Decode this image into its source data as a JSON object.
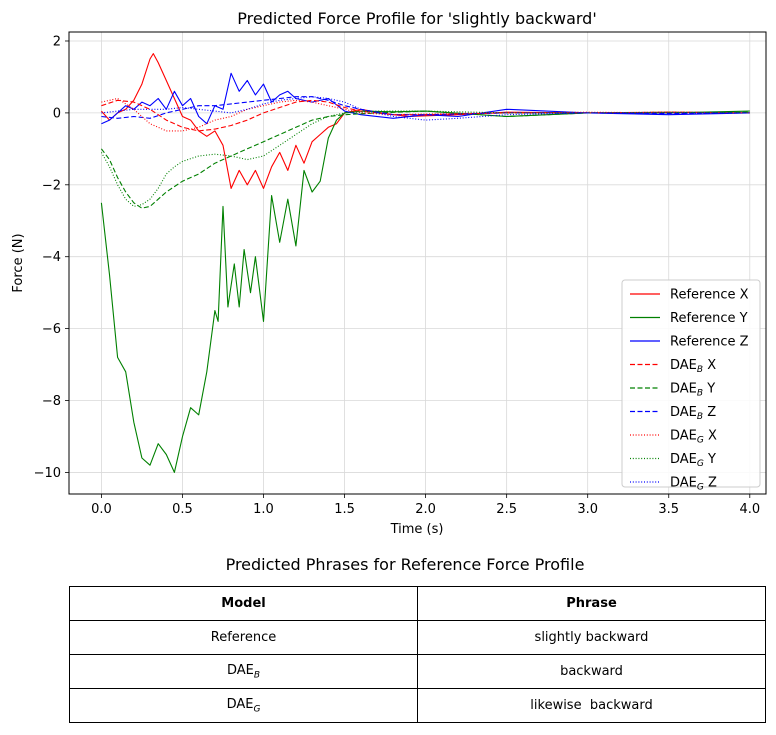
{
  "chart_data": {
    "type": "line",
    "title": "Predicted Force Profile for 'slightly backward'",
    "xlabel": "Time (s)",
    "ylabel": "Force (N)",
    "xlim": [
      -0.2,
      4.1
    ],
    "ylim": [
      -10.6,
      2.25
    ],
    "xticks": [
      0.0,
      0.5,
      1.0,
      1.5,
      2.0,
      2.5,
      3.0,
      3.5,
      4.0
    ],
    "xtick_labels": [
      "0.0",
      "0.5",
      "1.0",
      "1.5",
      "2.0",
      "2.5",
      "3.0",
      "3.5",
      "4.0"
    ],
    "yticks": [
      2,
      0,
      -2,
      -4,
      -6,
      -8,
      -10
    ],
    "ytick_labels": [
      "2",
      "0",
      "−2",
      "−4",
      "−6",
      "−8",
      "−10"
    ],
    "grid": true,
    "legend_position": "lower-right",
    "colors": {
      "x": "#ff0000",
      "y": "#008000",
      "z": "#0000ff"
    },
    "series": [
      {
        "name": "Reference X",
        "base": "Reference",
        "sub": "",
        "axis": "X",
        "color": "#ff0000",
        "style": "solid",
        "x": [
          0.0,
          0.05,
          0.1,
          0.15,
          0.2,
          0.25,
          0.3,
          0.32,
          0.35,
          0.4,
          0.45,
          0.5,
          0.55,
          0.6,
          0.65,
          0.7,
          0.75,
          0.8,
          0.85,
          0.9,
          0.95,
          1.0,
          1.05,
          1.1,
          1.15,
          1.2,
          1.25,
          1.3,
          1.35,
          1.4,
          1.45,
          1.5,
          1.6,
          1.7,
          1.8,
          1.9,
          2.0,
          2.2,
          2.5,
          3.0,
          3.5,
          4.0
        ],
        "y": [
          0.05,
          -0.2,
          0.0,
          0.1,
          0.35,
          0.8,
          1.5,
          1.65,
          1.4,
          0.9,
          0.4,
          -0.1,
          -0.2,
          -0.5,
          -0.65,
          -0.5,
          -0.9,
          -2.1,
          -1.6,
          -2.0,
          -1.6,
          -2.1,
          -1.5,
          -1.1,
          -1.6,
          -0.9,
          -1.4,
          -0.8,
          -0.6,
          -0.4,
          -0.3,
          0.0,
          0.1,
          0.02,
          -0.05,
          -0.1,
          -0.08,
          -0.05,
          0.02,
          0.0,
          0.02,
          0.0
        ]
      },
      {
        "name": "Reference Y",
        "base": "Reference",
        "sub": "",
        "axis": "Y",
        "color": "#008000",
        "style": "solid",
        "x": [
          0.0,
          0.05,
          0.1,
          0.15,
          0.2,
          0.25,
          0.3,
          0.35,
          0.4,
          0.45,
          0.5,
          0.55,
          0.6,
          0.65,
          0.7,
          0.72,
          0.75,
          0.78,
          0.82,
          0.85,
          0.88,
          0.92,
          0.95,
          1.0,
          1.05,
          1.1,
          1.15,
          1.2,
          1.25,
          1.3,
          1.35,
          1.4,
          1.45,
          1.5,
          1.6,
          1.8,
          2.0,
          2.5,
          3.0,
          3.5,
          4.0
        ],
        "y": [
          -2.5,
          -4.5,
          -6.8,
          -7.2,
          -8.6,
          -9.6,
          -9.8,
          -9.2,
          -9.5,
          -10.0,
          -9.0,
          -8.2,
          -8.4,
          -7.2,
          -5.5,
          -5.8,
          -2.6,
          -5.4,
          -4.2,
          -5.4,
          -3.8,
          -5.0,
          -4.0,
          -5.8,
          -2.3,
          -3.6,
          -2.4,
          -3.7,
          -1.6,
          -2.2,
          -1.9,
          -0.7,
          -0.2,
          0.0,
          0.05,
          0.03,
          0.05,
          -0.1,
          0.0,
          0.0,
          0.05
        ]
      },
      {
        "name": "Reference Z",
        "base": "Reference",
        "sub": "",
        "axis": "Z",
        "color": "#0000ff",
        "style": "solid",
        "x": [
          0.0,
          0.05,
          0.1,
          0.15,
          0.2,
          0.25,
          0.3,
          0.35,
          0.4,
          0.45,
          0.5,
          0.55,
          0.6,
          0.65,
          0.7,
          0.75,
          0.8,
          0.85,
          0.9,
          0.95,
          1.0,
          1.05,
          1.1,
          1.15,
          1.2,
          1.3,
          1.4,
          1.5,
          1.6,
          1.8,
          2.0,
          2.2,
          2.5,
          3.0,
          3.5,
          4.0
        ],
        "y": [
          -0.3,
          -0.2,
          0.0,
          0.2,
          0.1,
          0.3,
          0.2,
          0.4,
          0.1,
          0.6,
          0.2,
          0.4,
          -0.1,
          -0.3,
          0.2,
          0.1,
          1.1,
          0.6,
          0.9,
          0.5,
          0.8,
          0.3,
          0.5,
          0.6,
          0.4,
          0.3,
          0.4,
          0.05,
          -0.05,
          -0.15,
          -0.05,
          -0.1,
          0.1,
          0.0,
          -0.05,
          0.0
        ]
      },
      {
        "name": "DAEB X",
        "base": "DAE",
        "sub": "B",
        "axis": "X",
        "color": "#ff0000",
        "style": "dashed",
        "x": [
          0.0,
          0.1,
          0.2,
          0.3,
          0.4,
          0.5,
          0.6,
          0.7,
          0.8,
          0.9,
          1.0,
          1.1,
          1.2,
          1.3,
          1.4,
          1.5,
          1.6,
          1.8,
          2.0,
          2.5,
          3.0,
          3.5,
          4.0
        ],
        "y": [
          0.2,
          0.35,
          0.3,
          0.1,
          -0.2,
          -0.4,
          -0.5,
          -0.45,
          -0.35,
          -0.2,
          0.0,
          0.15,
          0.3,
          0.35,
          0.3,
          0.15,
          0.05,
          -0.05,
          -0.05,
          0.0,
          0.0,
          0.02,
          0.0
        ]
      },
      {
        "name": "DAEB Y",
        "base": "DAE",
        "sub": "B",
        "axis": "Y",
        "color": "#008000",
        "style": "dashed",
        "x": [
          0.0,
          0.05,
          0.1,
          0.15,
          0.2,
          0.25,
          0.3,
          0.35,
          0.4,
          0.5,
          0.6,
          0.7,
          0.8,
          0.9,
          1.0,
          1.1,
          1.2,
          1.3,
          1.4,
          1.5,
          1.7,
          2.0,
          2.5,
          3.0,
          3.5,
          4.0
        ],
        "y": [
          -1.0,
          -1.3,
          -1.8,
          -2.2,
          -2.5,
          -2.65,
          -2.6,
          -2.4,
          -2.2,
          -1.9,
          -1.7,
          -1.4,
          -1.2,
          -1.0,
          -0.8,
          -0.6,
          -0.4,
          -0.2,
          -0.1,
          -0.05,
          0.0,
          0.05,
          -0.1,
          0.0,
          0.0,
          0.02
        ]
      },
      {
        "name": "DAEB Z",
        "base": "DAE",
        "sub": "B",
        "axis": "Z",
        "color": "#0000ff",
        "style": "dashed",
        "x": [
          0.0,
          0.1,
          0.2,
          0.3,
          0.4,
          0.5,
          0.6,
          0.7,
          0.8,
          0.9,
          1.0,
          1.1,
          1.2,
          1.3,
          1.4,
          1.5,
          1.6,
          1.8,
          2.0,
          2.5,
          3.0,
          3.5,
          4.0
        ],
        "y": [
          -0.1,
          -0.15,
          -0.1,
          -0.15,
          0.0,
          0.1,
          0.2,
          0.2,
          0.25,
          0.3,
          0.35,
          0.4,
          0.45,
          0.45,
          0.35,
          0.2,
          0.1,
          -0.05,
          -0.05,
          0.0,
          0.0,
          -0.02,
          0.0
        ]
      },
      {
        "name": "DAEG X",
        "base": "DAE",
        "sub": "G",
        "axis": "X",
        "color": "#ff0000",
        "style": "dotted",
        "x": [
          0.0,
          0.1,
          0.2,
          0.3,
          0.4,
          0.5,
          0.6,
          0.7,
          0.8,
          0.9,
          1.0,
          1.1,
          1.2,
          1.3,
          1.4,
          1.5,
          1.6,
          1.8,
          2.0,
          2.5,
          3.0,
          3.5,
          4.0
        ],
        "y": [
          0.3,
          0.4,
          0.1,
          -0.3,
          -0.5,
          -0.5,
          -0.4,
          -0.2,
          -0.1,
          0.1,
          0.2,
          0.3,
          0.35,
          0.3,
          0.2,
          0.1,
          0.0,
          -0.05,
          -0.03,
          0.0,
          0.02,
          0.0,
          0.0
        ]
      },
      {
        "name": "DAEG Y",
        "base": "DAE",
        "sub": "G",
        "axis": "Y",
        "color": "#008000",
        "style": "dotted",
        "x": [
          0.0,
          0.05,
          0.1,
          0.15,
          0.2,
          0.25,
          0.3,
          0.35,
          0.4,
          0.45,
          0.5,
          0.6,
          0.7,
          0.8,
          0.9,
          1.0,
          1.1,
          1.2,
          1.3,
          1.4,
          1.5,
          1.7,
          2.0,
          2.5,
          3.0,
          3.5,
          4.0
        ],
        "y": [
          -1.1,
          -1.5,
          -2.0,
          -2.4,
          -2.6,
          -2.55,
          -2.4,
          -2.1,
          -1.7,
          -1.5,
          -1.35,
          -1.2,
          -1.15,
          -1.2,
          -1.3,
          -1.2,
          -0.9,
          -0.6,
          -0.3,
          -0.1,
          0.0,
          0.05,
          0.05,
          0.0,
          0.0,
          0.02,
          0.0
        ]
      },
      {
        "name": "DAEG Z",
        "base": "DAE",
        "sub": "G",
        "axis": "Z",
        "color": "#0000ff",
        "style": "dotted",
        "x": [
          0.0,
          0.1,
          0.2,
          0.3,
          0.4,
          0.5,
          0.6,
          0.7,
          0.8,
          0.9,
          1.0,
          1.1,
          1.2,
          1.3,
          1.4,
          1.5,
          1.6,
          1.8,
          2.0,
          2.2,
          2.5,
          3.0,
          3.5,
          4.0
        ],
        "y": [
          0.0,
          0.05,
          0.1,
          0.1,
          0.1,
          0.15,
          0.1,
          0.05,
          0.0,
          0.1,
          0.25,
          0.35,
          0.4,
          0.45,
          0.4,
          0.3,
          0.1,
          -0.1,
          -0.2,
          -0.15,
          -0.05,
          0.0,
          0.0,
          0.0
        ]
      }
    ]
  },
  "table": {
    "title": "Predicted Phrases for Reference Force Profile",
    "header_model": "Model",
    "header_phrase": "Phrase",
    "rows": [
      {
        "model": "Reference",
        "sub": "",
        "phrase": "slightly backward"
      },
      {
        "model": "DAE",
        "sub": "B",
        "phrase": "backward"
      },
      {
        "model": "DAE",
        "sub": "G",
        "phrase": "likewise  backward"
      }
    ]
  }
}
